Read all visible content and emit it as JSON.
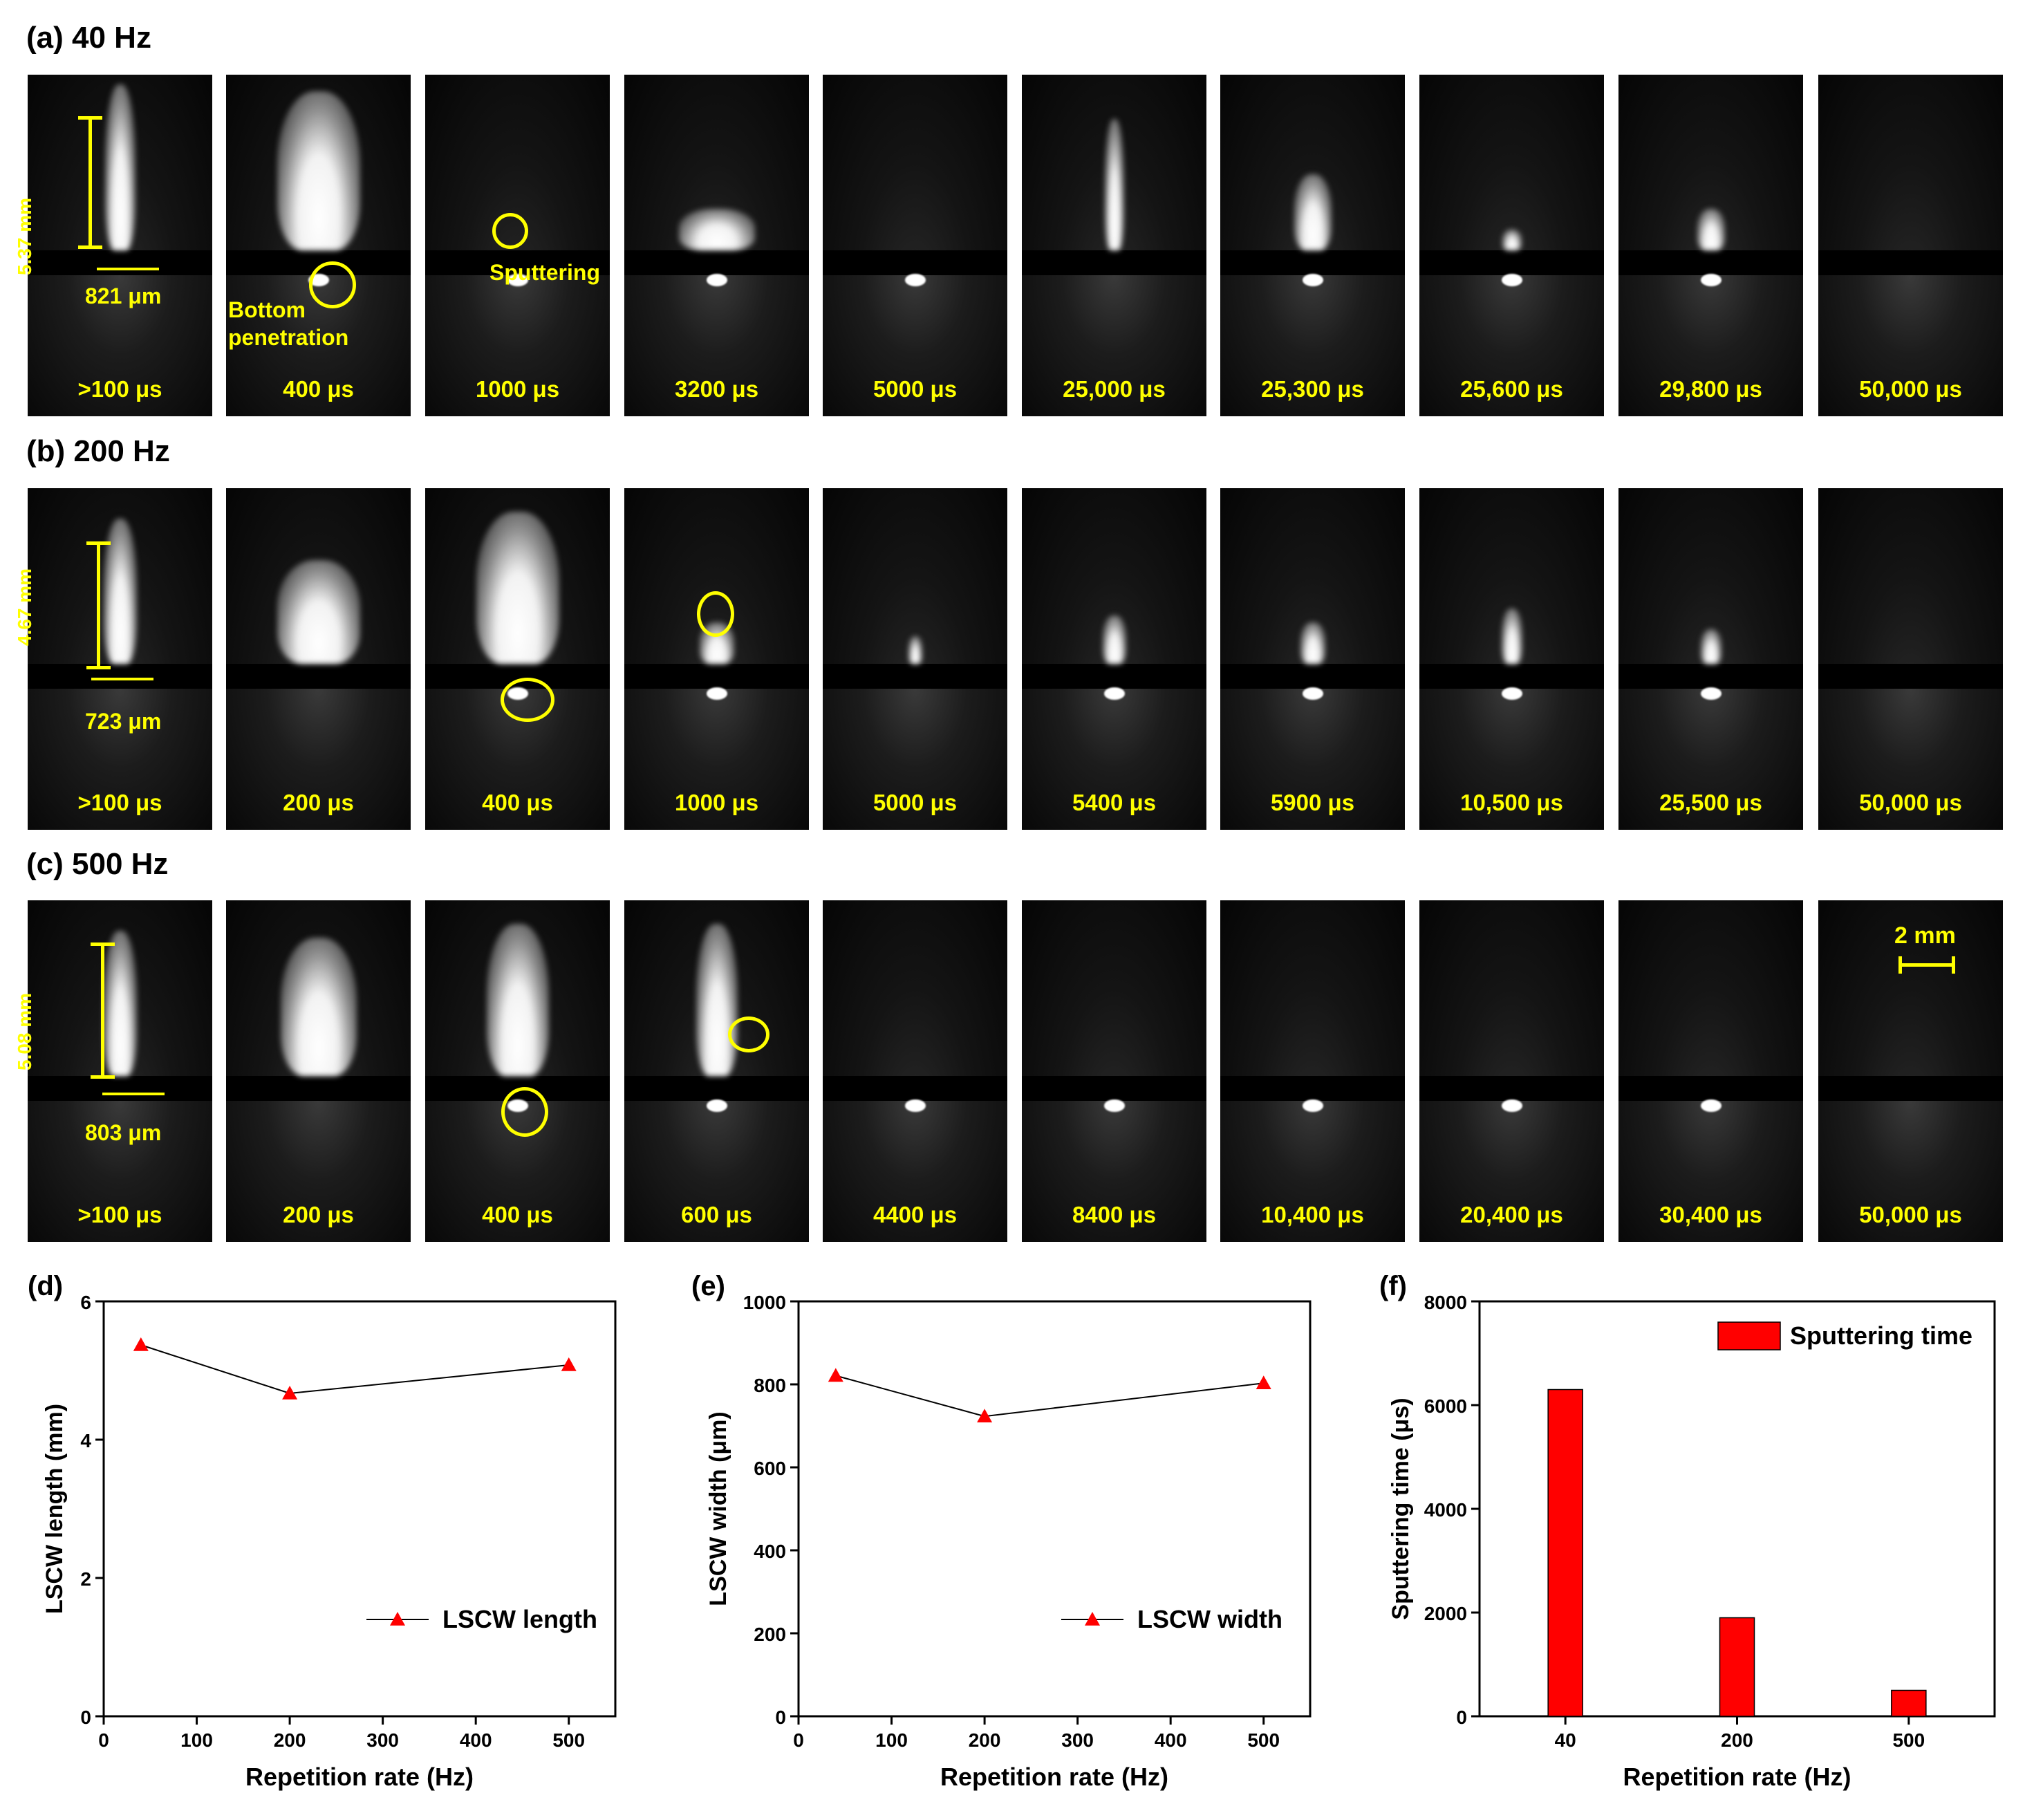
{
  "rows": [
    {
      "label": "(a) 40 Hz",
      "times": [
        ">100 μs",
        "400 μs",
        "1000 μs",
        "3200 μs",
        "5000 μs",
        "25,000 μs",
        "25,300 μs",
        "25,600 μs",
        "29,800 μs",
        "50,000 μs"
      ],
      "length_text": "5.37 mm",
      "width_text": "821 μm",
      "annotations": {
        "bottom": "Bottom penetration",
        "sputter": "Sputtering"
      }
    },
    {
      "label": "(b) 200 Hz",
      "times": [
        ">100 μs",
        "200 μs",
        "400 μs",
        "1000 μs",
        "5000 μs",
        "5400 μs",
        "5900 μs",
        "10,500 μs",
        "25,500 μs",
        "50,000 μs"
      ],
      "length_text": "4.67 mm",
      "width_text": "723 μm"
    },
    {
      "label": "(c) 500 Hz",
      "times": [
        ">100 μs",
        "200 μs",
        "400 μs",
        "600 μs",
        "4400 μs",
        "8400 μs",
        "10,400 μs",
        "20,400 μs",
        "30,400 μs",
        "50,000 μs"
      ],
      "length_text": "5.08 mm",
      "width_text": "803 μm",
      "scale_bar": "2 mm"
    }
  ],
  "annotation_color": "#ffff00",
  "chart_data": [
    {
      "panel": "(d)",
      "type": "line",
      "x": [
        40,
        200,
        500
      ],
      "series": [
        {
          "name": "LSCW length",
          "values": [
            5.37,
            4.67,
            5.08
          ],
          "color": "#ff0000",
          "marker": "triangle"
        }
      ],
      "xlabel": "Repetition rate (Hz)",
      "ylabel": "LSCW length (mm)",
      "xlim": [
        0,
        550
      ],
      "ylim": [
        0,
        6
      ],
      "xticks": [
        0,
        100,
        200,
        300,
        400,
        500
      ],
      "yticks": [
        0,
        2,
        4,
        6
      ],
      "legend": "lower-right"
    },
    {
      "panel": "(e)",
      "type": "line",
      "x": [
        40,
        200,
        500
      ],
      "series": [
        {
          "name": "LSCW width",
          "values": [
            821,
            723,
            803
          ],
          "color": "#ff0000",
          "marker": "triangle"
        }
      ],
      "xlabel": "Repetition rate (Hz)",
      "ylabel": "LSCW width (μm)",
      "xlim": [
        0,
        550
      ],
      "ylim": [
        0,
        1000
      ],
      "xticks": [
        0,
        100,
        200,
        300,
        400,
        500
      ],
      "yticks": [
        0,
        200,
        400,
        600,
        800,
        1000
      ],
      "legend": "lower-right"
    },
    {
      "panel": "(f)",
      "type": "bar",
      "categories": [
        "40",
        "200",
        "500"
      ],
      "series": [
        {
          "name": "Sputtering time",
          "values": [
            6300,
            1900,
            500
          ],
          "color": "#ff0000"
        }
      ],
      "xlabel": "Repetition rate (Hz)",
      "ylabel": "Sputtering time (μs)",
      "ylim": [
        0,
        8000
      ],
      "yticks": [
        0,
        2000,
        4000,
        6000,
        8000
      ],
      "legend": "top-right"
    }
  ]
}
